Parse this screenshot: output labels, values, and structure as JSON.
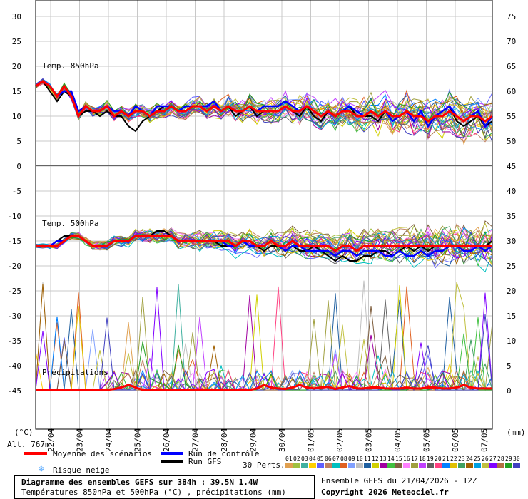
{
  "chart_data": {
    "type": "line",
    "title": "Diagramme des ensembles GEFS sur 384h : 39.5N 1.4W",
    "subtitle": "Températures 850hPa et 500hPa (°C) , précipitations (mm)",
    "panels": [
      {
        "label": "Temp. 850hPa",
        "ylim": [
          0,
          30
        ]
      },
      {
        "label": "Temp. 500hPa",
        "ylim": [
          -45,
          0
        ]
      },
      {
        "label": "Précipitations"
      }
    ],
    "left_axis": {
      "unit": "(°C)",
      "ticks": [
        30,
        25,
        20,
        15,
        10,
        5,
        0,
        -5,
        -10,
        -15,
        -20,
        -25,
        -30,
        -35,
        -40,
        -45
      ]
    },
    "right_axis": {
      "unit": "(mm)",
      "ticks": [
        75,
        70,
        65,
        60,
        55,
        50,
        45,
        40,
        35,
        30,
        25,
        20,
        15,
        10,
        5,
        0
      ]
    },
    "x_labels": [
      "22/04",
      "23/04",
      "24/04",
      "25/04",
      "26/04",
      "27/04",
      "28/04",
      "29/04",
      "30/04",
      "01/05",
      "02/05",
      "03/05",
      "04/05",
      "05/05",
      "06/05",
      "07/05"
    ],
    "altitude": "Alt. 767m",
    "legend": [
      {
        "name": "Moyenne des scénarios",
        "color": "#ff0000"
      },
      {
        "name": "Run de contrôle",
        "color": "#0000ff"
      },
      {
        "name": "Run GFS",
        "color": "#000000"
      },
      {
        "name": "Risque neige",
        "color": "#4aa3ff",
        "icon": "snowflake-icon"
      }
    ],
    "perts_label": "30 Perts.",
    "members": [
      "01",
      "02",
      "03",
      "04",
      "05",
      "06",
      "07",
      "08",
      "09",
      "10",
      "11",
      "12",
      "13",
      "14",
      "15",
      "16",
      "17",
      "18",
      "19",
      "20",
      "21",
      "22",
      "23",
      "24",
      "25",
      "26",
      "27",
      "28",
      "29",
      "30"
    ],
    "member_colors": [
      "#e0a050",
      "#a0c040",
      "#40b0a0",
      "#ffd000",
      "#6060ff",
      "#c08060",
      "#00c0c0",
      "#e06020",
      "#80a0ff",
      "#c0c0c0",
      "#2060a0",
      "#d0d000",
      "#a000a0",
      "#40c040",
      "#806040",
      "#ff80ff",
      "#a0a040",
      "#c040ff",
      "#606060",
      "#ff4080",
      "#0080ff",
      "#e0c000",
      "#40a060",
      "#a06000",
      "#00a0e0",
      "#c0c040",
      "#8000ff",
      "#b07040",
      "#20a020",
      "#4040c0"
    ],
    "series": [
      {
        "name": "Moyenne des scénarios",
        "t850": [
          16,
          17,
          16,
          14,
          16,
          14,
          10,
          12,
          11,
          11,
          12,
          10,
          11,
          10,
          11,
          11,
          10,
          11,
          11,
          12,
          11,
          11,
          12,
          12,
          11,
          12,
          11,
          12,
          11,
          11,
          12,
          11,
          11,
          11,
          11,
          12,
          11,
          11,
          12,
          11,
          10,
          11,
          10,
          11,
          11,
          10,
          10,
          11,
          10,
          11,
          10,
          10,
          11,
          10,
          10,
          9,
          10,
          10,
          11,
          10,
          9,
          10,
          10,
          9,
          10
        ],
        "t500": [
          -16,
          -16,
          -16,
          -16,
          -15,
          -14,
          -14,
          -15,
          -16,
          -16,
          -16,
          -15,
          -15,
          -15,
          -14,
          -14,
          -14,
          -14,
          -14,
          -14,
          -15,
          -15,
          -15,
          -15,
          -15,
          -15,
          -15,
          -15,
          -16,
          -15,
          -15,
          -16,
          -16,
          -15,
          -16,
          -16,
          -15,
          -16,
          -16,
          -16,
          -16,
          -16,
          -17,
          -16,
          -16,
          -17,
          -16,
          -16,
          -16,
          -16,
          -16,
          -16,
          -16,
          -16,
          -16,
          -16,
          -16,
          -16,
          -16,
          -16,
          -16,
          -16,
          -16,
          -16,
          -16
        ]
      },
      {
        "name": "Run de contrôle",
        "t850": [
          16,
          17,
          16,
          14,
          15,
          15,
          11,
          12,
          11,
          11,
          12,
          11,
          11,
          10,
          12,
          11,
          10,
          12,
          12,
          12,
          11,
          12,
          12,
          12,
          12,
          13,
          11,
          12,
          11,
          11,
          12,
          11,
          12,
          12,
          12,
          13,
          12,
          11,
          12,
          11,
          10,
          11,
          10,
          11,
          12,
          11,
          10,
          11,
          10,
          11,
          9,
          10,
          11,
          9,
          11,
          8,
          10,
          11,
          12,
          10,
          9,
          10,
          11,
          8,
          10
        ],
        "t500": [
          -16,
          -16,
          -16,
          -15,
          -15,
          -14,
          -14,
          -15,
          -16,
          -16,
          -16,
          -15,
          -15,
          -15,
          -14,
          -14,
          -14,
          -14,
          -14,
          -14,
          -15,
          -15,
          -15,
          -15,
          -15,
          -15,
          -15,
          -16,
          -16,
          -15,
          -16,
          -16,
          -16,
          -15,
          -16,
          -17,
          -16,
          -16,
          -17,
          -17,
          -17,
          -17,
          -18,
          -17,
          -17,
          -18,
          -17,
          -17,
          -17,
          -18,
          -18,
          -17,
          -18,
          -18,
          -17,
          -18,
          -17,
          -17,
          -16,
          -16,
          -17,
          -17,
          -16,
          -17,
          -16
        ]
      },
      {
        "name": "Run GFS",
        "t850": [
          16,
          17,
          15,
          13,
          15,
          14,
          10,
          11,
          11,
          10,
          11,
          10,
          10,
          8,
          7,
          9,
          10,
          11,
          12,
          12,
          11,
          11,
          12,
          12,
          11,
          12,
          11,
          12,
          10,
          11,
          12,
          10,
          11,
          11,
          11,
          12,
          11,
          10,
          12,
          10,
          9,
          11,
          10,
          11,
          12,
          10,
          10,
          10,
          9,
          11,
          10,
          10,
          11,
          10,
          10,
          9,
          10,
          11,
          12,
          9,
          8,
          9,
          10,
          8,
          9
        ],
        "t500": [
          -16,
          -16,
          -16,
          -15,
          -14,
          -14,
          -14,
          -15,
          -16,
          -16,
          -16,
          -15,
          -15,
          -15,
          -14,
          -14,
          -14,
          -13,
          -13,
          -14,
          -15,
          -15,
          -15,
          -15,
          -15,
          -15,
          -16,
          -16,
          -16,
          -15,
          -16,
          -16,
          -17,
          -16,
          -16,
          -17,
          -16,
          -17,
          -17,
          -16,
          -17,
          -18,
          -19,
          -18,
          -19,
          -19,
          -18,
          -18,
          -17,
          -17,
          -18,
          -17,
          -16,
          -17,
          -16,
          -17,
          -16,
          -16,
          -16,
          -16,
          -16,
          -16,
          -16,
          -16,
          -15
        ]
      }
    ],
    "precip_series": [
      {
        "name": "Moyenne des scénarios",
        "mm": [
          0,
          0,
          0,
          0,
          0,
          0,
          0,
          0,
          0,
          0,
          0,
          0.2,
          0.5,
          1,
          0.5,
          0,
          0,
          0,
          0,
          0,
          0,
          0,
          0,
          0,
          0,
          0,
          0,
          0,
          0,
          0,
          0,
          0.3,
          1,
          0.5,
          0.3,
          0.2,
          0.5,
          1,
          0.5,
          0.3,
          0.5,
          0.6,
          0.2,
          0.5,
          0.8,
          0.3,
          0.3,
          0.5,
          0.5,
          0.3,
          0.3,
          0.3,
          0.5,
          0.3,
          0.3,
          0.5,
          0.5,
          0.3,
          0.3,
          0.5,
          1,
          0.5,
          0.3,
          0.3,
          0.3
        ]
      }
    ]
  },
  "footer": {
    "ensemble": "Ensemble GEFS du 21/04/2026 - 12Z",
    "copyright": "Copyright 2026 Meteociel.fr"
  }
}
